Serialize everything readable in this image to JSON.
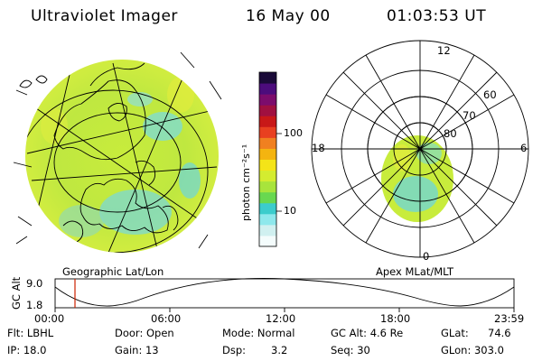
{
  "header": {
    "title": "Ultraviolet Imager",
    "date": "16 May 00",
    "time": "01:03:53 UT"
  },
  "colors": {
    "earth_green": "#c8ec3c",
    "band_green": "#a8e04c",
    "cyan": "#5fd6e0",
    "outline": "#000000",
    "marker_red": "#cc2200"
  },
  "left_panel": {
    "label": "Geographic Lat/Lon"
  },
  "right_panel": {
    "label": "Apex MLat/MLT",
    "mlt_labels": [
      "12",
      "18",
      "6",
      "0"
    ],
    "lat_labels": [
      "60",
      "70",
      "80"
    ]
  },
  "colorbar": {
    "title": "photon cm⁻²s⁻¹",
    "ticks": [
      "100",
      "10"
    ],
    "scale": "log",
    "colors": [
      "#f4fcfc",
      "#d0f0f0",
      "#8ee8ec",
      "#3ccccc",
      "#68d850",
      "#a8e43c",
      "#d4ec30",
      "#f4e418",
      "#f4b410",
      "#f08020",
      "#e84020",
      "#c81818",
      "#a01040",
      "#7c0c6c",
      "#4c0c7c",
      "#1a0a38"
    ]
  },
  "timeline": {
    "ylabel": "GC Alt",
    "yticks": [
      "9.0",
      "1.8"
    ],
    "xticks": [
      "00:00",
      "06:00",
      "12:00",
      "18:00",
      "23:59"
    ],
    "marker_time": "01:03:53"
  },
  "info": {
    "row1": [
      "Flt: LBHL",
      "Door: Open",
      "Mode: Normal",
      "GC Alt: 4.6 Re",
      "GLat:",
      "74.6"
    ],
    "row2": [
      "IP: 18.0",
      "Gain: 13",
      "Dsp:",
      "3.2",
      "Seq: 30",
      "GLon: 303.0"
    ]
  }
}
